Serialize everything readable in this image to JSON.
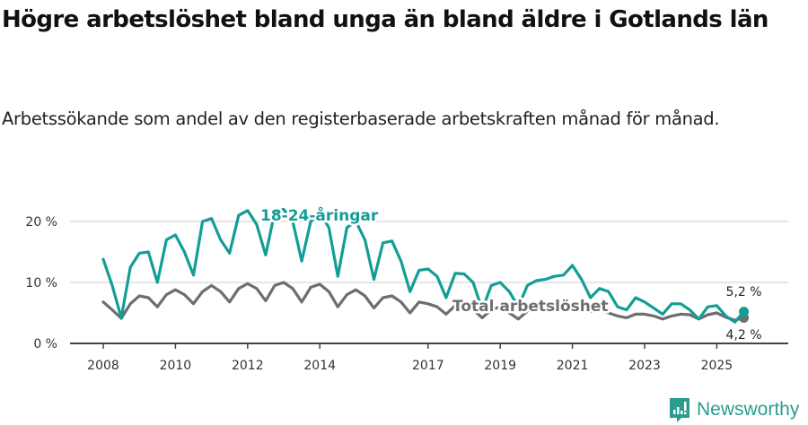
{
  "header": {
    "title": "Högre arbetslöshet bland unga än bland äldre i Gotlands län",
    "subtitle": "Arbetssökande som andel av den registerbaserade arbetskraften månad för månad."
  },
  "colors": {
    "youth": "#139e95",
    "total": "#6e6d72",
    "grid": "#dddddd",
    "axis": "#444444",
    "brand": "#2a9d8f"
  },
  "branding": {
    "logo_text": "Newsworthy",
    "logo_icon": "bar-chart-speech-bubble-icon"
  },
  "chart_data": {
    "type": "line",
    "title": "Högre arbetslöshet bland unga än bland äldre i Gotlands län",
    "subtitle": "Arbetssökande som andel av den registerbaserade arbetskraften månad för månad.",
    "xlabel": "",
    "ylabel": "",
    "ylim": [
      0,
      22
    ],
    "yticks": [
      0,
      10,
      20
    ],
    "ytick_labels": [
      "0 %",
      "10 %",
      "20 %"
    ],
    "xticks": [
      2008,
      2010,
      2012,
      2014,
      2017,
      2019,
      2021,
      2023,
      2025
    ],
    "xtick_labels": [
      "2008",
      "2010",
      "2012",
      "2014",
      "2017",
      "2019",
      "2021",
      "2023",
      "2025"
    ],
    "grid": true,
    "legend": "inline labels",
    "x": [
      2008.0,
      2008.25,
      2008.5,
      2008.75,
      2009.0,
      2009.25,
      2009.5,
      2009.75,
      2010.0,
      2010.25,
      2010.5,
      2010.75,
      2011.0,
      2011.25,
      2011.5,
      2011.75,
      2012.0,
      2012.25,
      2012.5,
      2012.75,
      2013.0,
      2013.25,
      2013.5,
      2013.75,
      2014.0,
      2014.25,
      2014.5,
      2014.75,
      2015.0,
      2015.25,
      2015.5,
      2015.75,
      2016.0,
      2016.25,
      2016.5,
      2016.75,
      2017.0,
      2017.25,
      2017.5,
      2017.75,
      2018.0,
      2018.25,
      2018.5,
      2018.75,
      2019.0,
      2019.25,
      2019.5,
      2019.75,
      2020.0,
      2020.25,
      2020.5,
      2020.75,
      2021.0,
      2021.25,
      2021.5,
      2021.75,
      2022.0,
      2022.25,
      2022.5,
      2022.75,
      2023.0,
      2023.25,
      2023.5,
      2023.75,
      2024.0,
      2024.25,
      2024.5,
      2024.75,
      2025.0,
      2025.25,
      2025.5,
      2025.75
    ],
    "series": [
      {
        "name": "18-24-åringar",
        "values": [
          13.8,
          9.5,
          4.2,
          12.5,
          14.8,
          15.0,
          10.0,
          17.0,
          17.8,
          15.0,
          11.2,
          20.0,
          20.5,
          17.0,
          14.8,
          21.0,
          21.8,
          19.5,
          14.5,
          21.5,
          22.0,
          20.0,
          13.5,
          20.0,
          21.5,
          19.0,
          11.0,
          19.0,
          20.0,
          17.0,
          10.5,
          16.5,
          16.8,
          13.5,
          8.5,
          12.0,
          12.2,
          11.0,
          7.5,
          11.5,
          11.4,
          10.0,
          5.5,
          9.5,
          10.0,
          8.5,
          6.0,
          9.5,
          10.3,
          10.5,
          11.0,
          11.2,
          12.8,
          10.5,
          7.5,
          9.0,
          8.5,
          6.0,
          5.5,
          7.5,
          6.8,
          5.8,
          4.8,
          6.5,
          6.5,
          5.5,
          4.0,
          6.0,
          6.2,
          4.5,
          3.5,
          5.2
        ]
      },
      {
        "name": "Total arbetslöshet",
        "values": [
          6.8,
          5.5,
          4.1,
          6.5,
          7.8,
          7.5,
          6.0,
          8.0,
          8.8,
          8.0,
          6.5,
          8.5,
          9.5,
          8.5,
          6.8,
          9.0,
          9.8,
          9.0,
          7.0,
          9.5,
          10.0,
          9.0,
          6.8,
          9.2,
          9.7,
          8.5,
          6.0,
          8.0,
          8.8,
          7.8,
          5.8,
          7.5,
          7.8,
          6.8,
          5.0,
          6.8,
          6.5,
          6.0,
          4.8,
          6.2,
          6.3,
          5.5,
          4.2,
          5.5,
          6.0,
          5.0,
          4.0,
          5.3,
          6.3,
          6.0,
          5.8,
          6.5,
          6.5,
          5.5,
          5.2,
          5.5,
          5.0,
          4.5,
          4.2,
          4.8,
          4.8,
          4.5,
          4.0,
          4.5,
          4.8,
          4.7,
          4.0,
          4.7,
          5.0,
          4.3,
          3.8,
          4.2
        ]
      }
    ],
    "annotations": [
      {
        "text": "18-24-åringar",
        "series": "18-24-åringar"
      },
      {
        "text": "Total arbetslöshet",
        "series": "Total arbetslöshet"
      },
      {
        "text": "5,2 %",
        "series": "18-24-åringar",
        "position": "last"
      },
      {
        "text": "4,2 %",
        "series": "Total arbetslöshet",
        "position": "last"
      }
    ]
  }
}
